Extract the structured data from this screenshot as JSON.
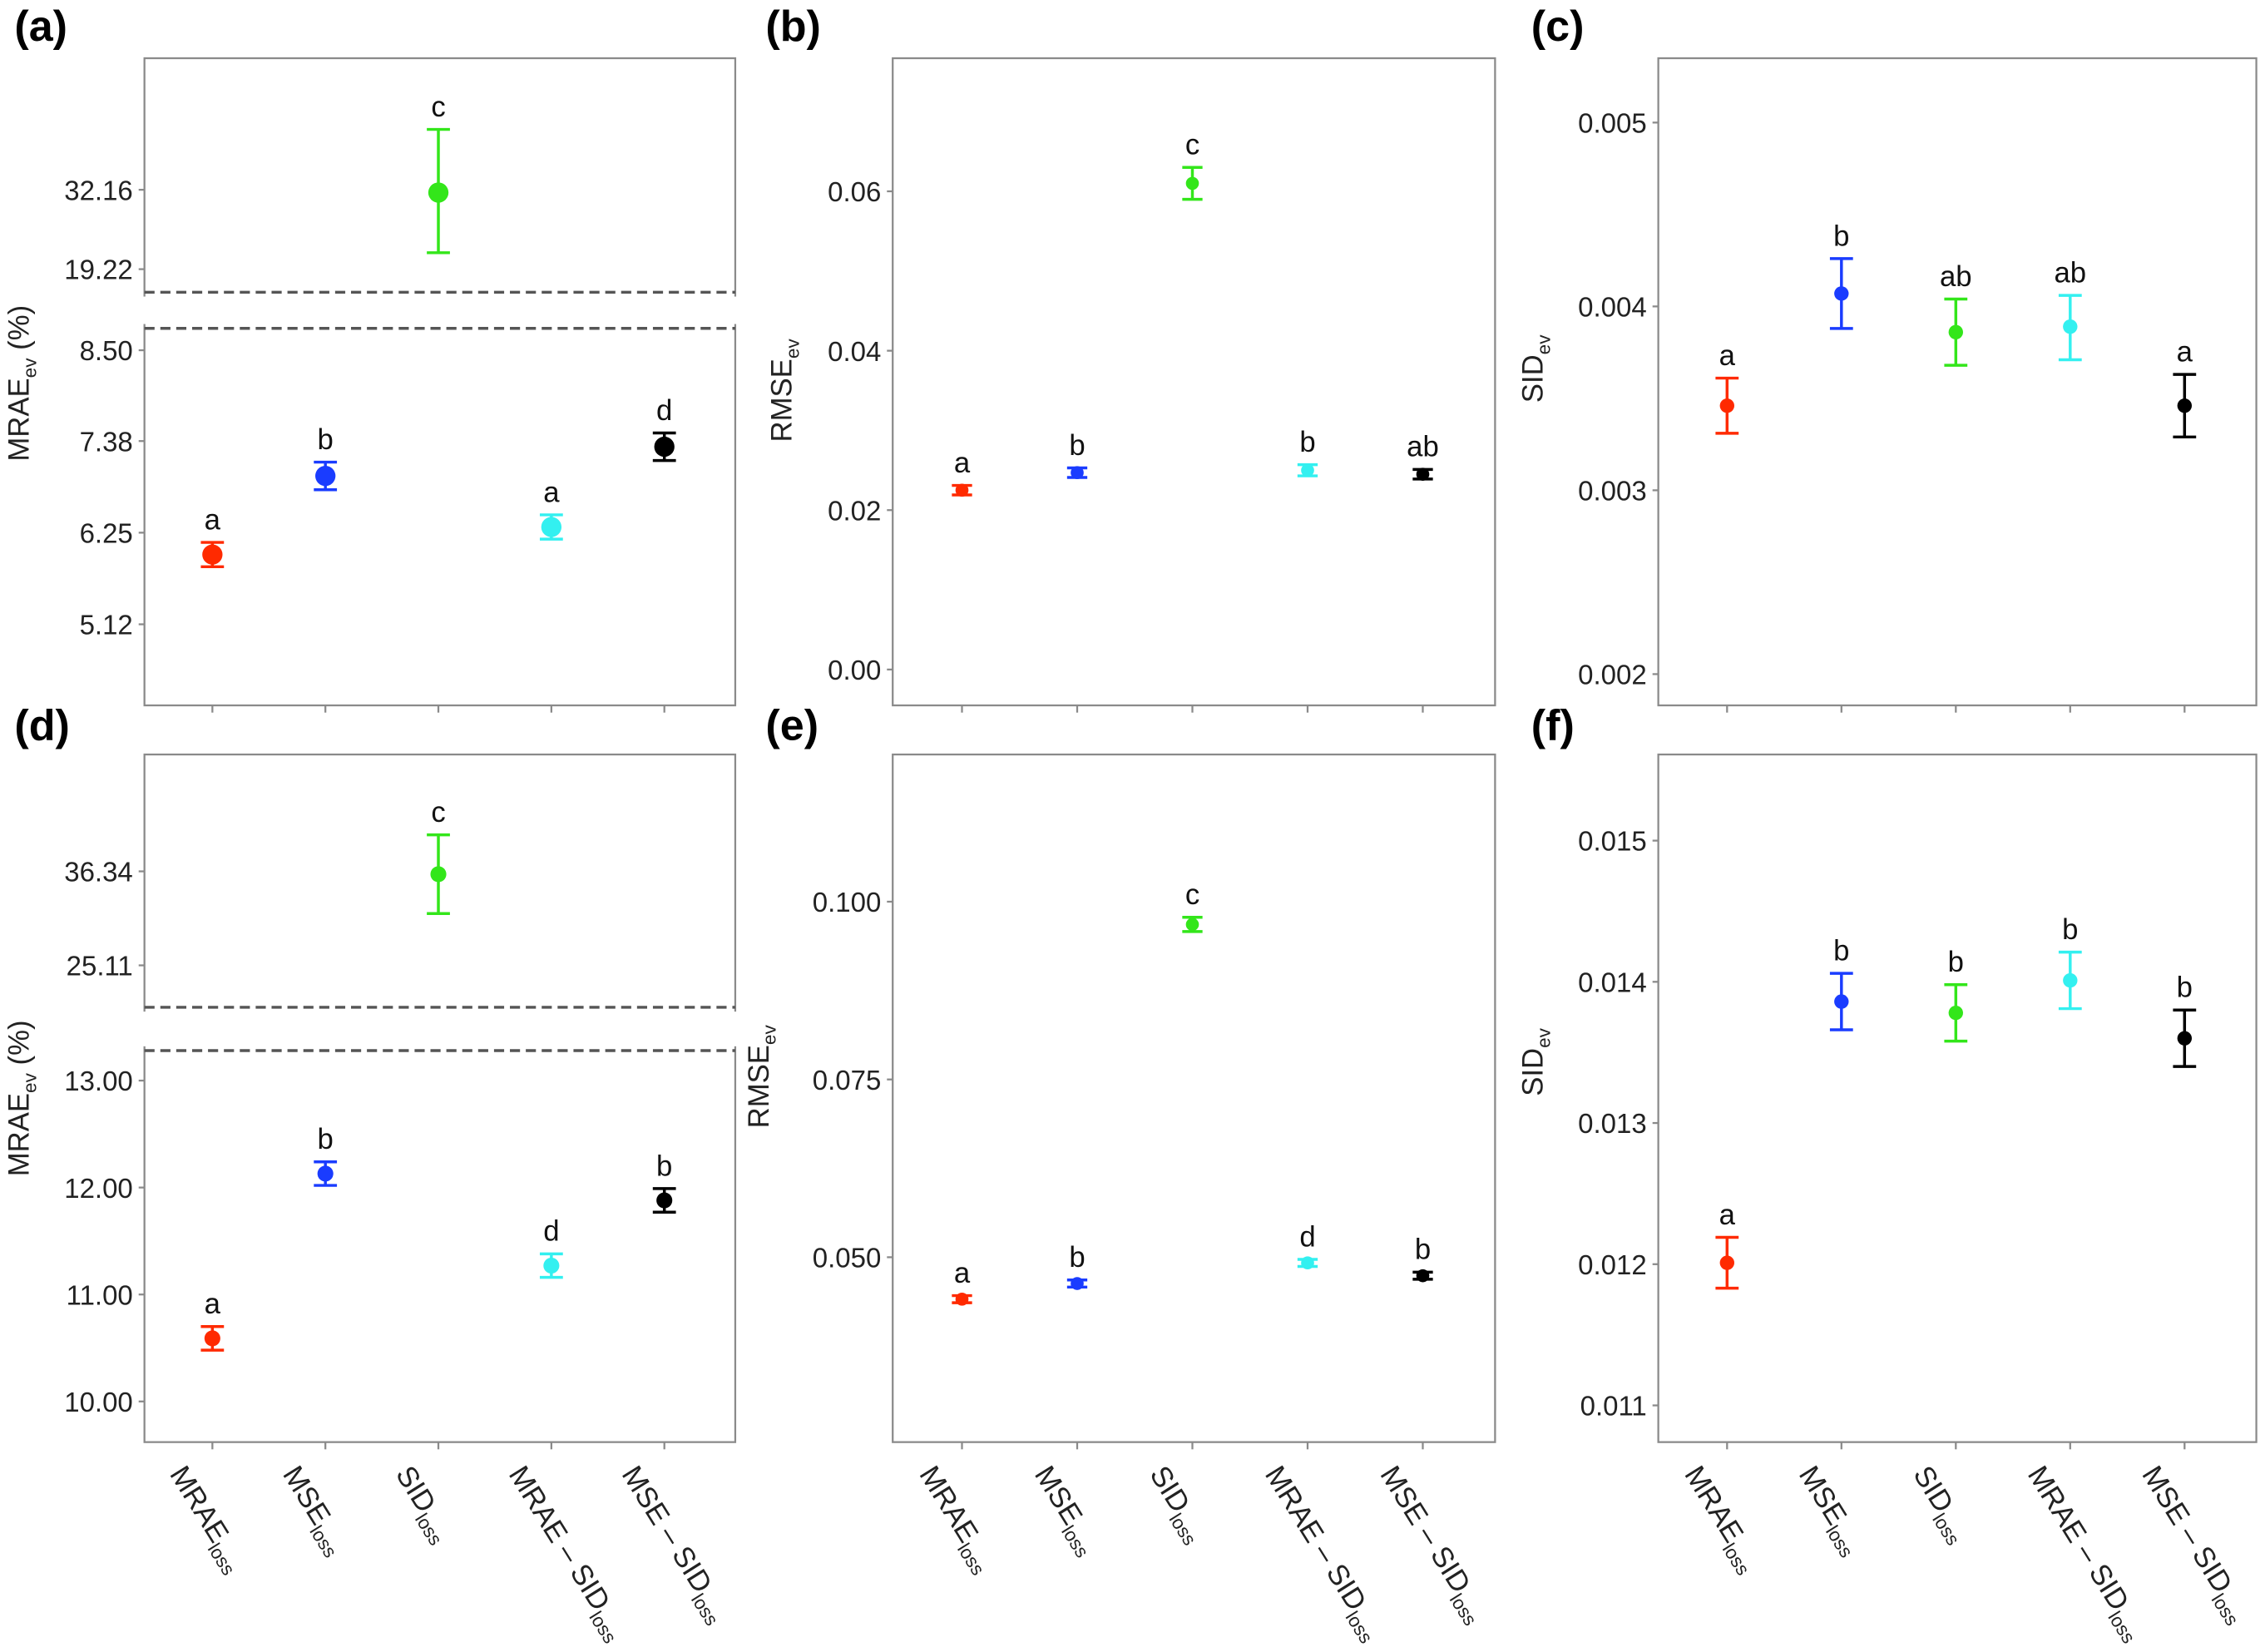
{
  "categories": [
    {
      "main": "MRAE",
      "sub": "loss"
    },
    {
      "main": "MSE",
      "sub": "loss"
    },
    {
      "main": "SID",
      "sub": "loss"
    },
    {
      "main": "MRAE – SID",
      "sub": "loss"
    },
    {
      "main": "MSE – SID",
      "sub": "loss"
    }
  ],
  "colors": [
    "#ff2a00",
    "#1a3cff",
    "#33e61a",
    "#33f0f0",
    "#000000"
  ],
  "chart_data": [
    {
      "panel": "(a)",
      "type": "scatter",
      "ylabel": {
        "main": "MRAE",
        "sub": "ev",
        "suffix": " (%)"
      },
      "broken_axis": true,
      "ylim_lower": [
        4.12,
        8.77
      ],
      "ylim_upper": [
        15.46,
        53.6
      ],
      "yticks": [
        "5.12",
        "6.25",
        "7.38",
        "8.50",
        "19.22",
        "32.16"
      ],
      "points": [
        {
          "value": 5.98,
          "low": 5.83,
          "high": 6.13,
          "letter": "a"
        },
        {
          "value": 6.95,
          "low": 6.78,
          "high": 7.12,
          "letter": "b"
        },
        {
          "value": 31.7,
          "low": 21.9,
          "high": 42.0,
          "letter": "c"
        },
        {
          "value": 6.32,
          "low": 6.17,
          "high": 6.47,
          "letter": "a"
        },
        {
          "value": 7.31,
          "low": 7.14,
          "high": 7.48,
          "letter": "d"
        }
      ]
    },
    {
      "panel": "(b)",
      "type": "scatter",
      "ylabel": {
        "main": "RMSE",
        "sub": "ev",
        "suffix": ""
      },
      "broken_axis": false,
      "ylim": [
        -0.0045,
        0.0767
      ],
      "yticks": [
        "0.00",
        "0.02",
        "0.04",
        "0.06"
      ],
      "points": [
        {
          "value": 0.0225,
          "low": 0.0219,
          "high": 0.0231,
          "letter": "a"
        },
        {
          "value": 0.0247,
          "low": 0.0241,
          "high": 0.0253,
          "letter": "b"
        },
        {
          "value": 0.061,
          "low": 0.059,
          "high": 0.063,
          "letter": "c"
        },
        {
          "value": 0.025,
          "low": 0.0243,
          "high": 0.0257,
          "letter": "b"
        },
        {
          "value": 0.0245,
          "low": 0.0239,
          "high": 0.0251,
          "letter": "ab"
        }
      ]
    },
    {
      "panel": "(c)",
      "type": "scatter",
      "ylabel": {
        "main": "SID",
        "sub": "ev",
        "suffix": ""
      },
      "broken_axis": false,
      "ylim": [
        0.00183,
        0.00535
      ],
      "yticks": [
        "0.002",
        "0.003",
        "0.004",
        "0.005"
      ],
      "points": [
        {
          "value": 0.00346,
          "low": 0.00331,
          "high": 0.00361,
          "letter": "a"
        },
        {
          "value": 0.00407,
          "low": 0.00388,
          "high": 0.00426,
          "letter": "b"
        },
        {
          "value": 0.00386,
          "low": 0.00368,
          "high": 0.00404,
          "letter": "ab"
        },
        {
          "value": 0.00389,
          "low": 0.00371,
          "high": 0.00406,
          "letter": "ab"
        },
        {
          "value": 0.00346,
          "low": 0.00329,
          "high": 0.00363,
          "letter": "a"
        }
      ]
    },
    {
      "panel": "(d)",
      "type": "scatter",
      "ylabel": {
        "main": "MRAE",
        "sub": "ev",
        "suffix": " (%)"
      },
      "broken_axis": true,
      "ylim_lower": [
        9.62,
        13.28
      ],
      "ylim_upper": [
        20.1,
        50.3
      ],
      "yticks": [
        "10.00",
        "11.00",
        "12.00",
        "13.00",
        "25.11",
        "36.34"
      ],
      "points": [
        {
          "value": 10.59,
          "low": 10.48,
          "high": 10.7,
          "letter": "a"
        },
        {
          "value": 12.13,
          "low": 12.02,
          "high": 12.24,
          "letter": "b"
        },
        {
          "value": 36.0,
          "low": 31.3,
          "high": 40.7,
          "letter": "c"
        },
        {
          "value": 11.27,
          "low": 11.16,
          "high": 11.38,
          "letter": "d"
        },
        {
          "value": 11.88,
          "low": 11.77,
          "high": 11.99,
          "letter": "b"
        }
      ]
    },
    {
      "panel": "(e)",
      "type": "scatter",
      "ylabel": {
        "main": "RMSE",
        "sub": "ev",
        "suffix": ""
      },
      "broken_axis": false,
      "ylim": [
        0.024,
        0.1207
      ],
      "yticks": [
        "0.050",
        "0.075",
        "0.100"
      ],
      "points": [
        {
          "value": 0.0441,
          "low": 0.0436,
          "high": 0.0446,
          "letter": "a"
        },
        {
          "value": 0.0463,
          "low": 0.0458,
          "high": 0.0468,
          "letter": "b"
        },
        {
          "value": 0.0968,
          "low": 0.0958,
          "high": 0.0978,
          "letter": "c"
        },
        {
          "value": 0.0492,
          "low": 0.0487,
          "high": 0.0497,
          "letter": "d"
        },
        {
          "value": 0.0474,
          "low": 0.0469,
          "high": 0.0479,
          "letter": "b"
        }
      ]
    },
    {
      "panel": "(f)",
      "type": "scatter",
      "ylabel": {
        "main": "SID",
        "sub": "ev",
        "suffix": ""
      },
      "broken_axis": false,
      "ylim": [
        0.01074,
        0.01561
      ],
      "yticks": [
        "0.011",
        "0.012",
        "0.013",
        "0.014",
        "0.015"
      ],
      "points": [
        {
          "value": 0.01201,
          "low": 0.01183,
          "high": 0.01219,
          "letter": "a"
        },
        {
          "value": 0.01386,
          "low": 0.01366,
          "high": 0.01406,
          "letter": "b"
        },
        {
          "value": 0.01378,
          "low": 0.01358,
          "high": 0.01398,
          "letter": "b"
        },
        {
          "value": 0.01401,
          "low": 0.01381,
          "high": 0.01421,
          "letter": "b"
        },
        {
          "value": 0.0136,
          "low": 0.0134,
          "high": 0.0138,
          "letter": "b"
        }
      ]
    }
  ]
}
